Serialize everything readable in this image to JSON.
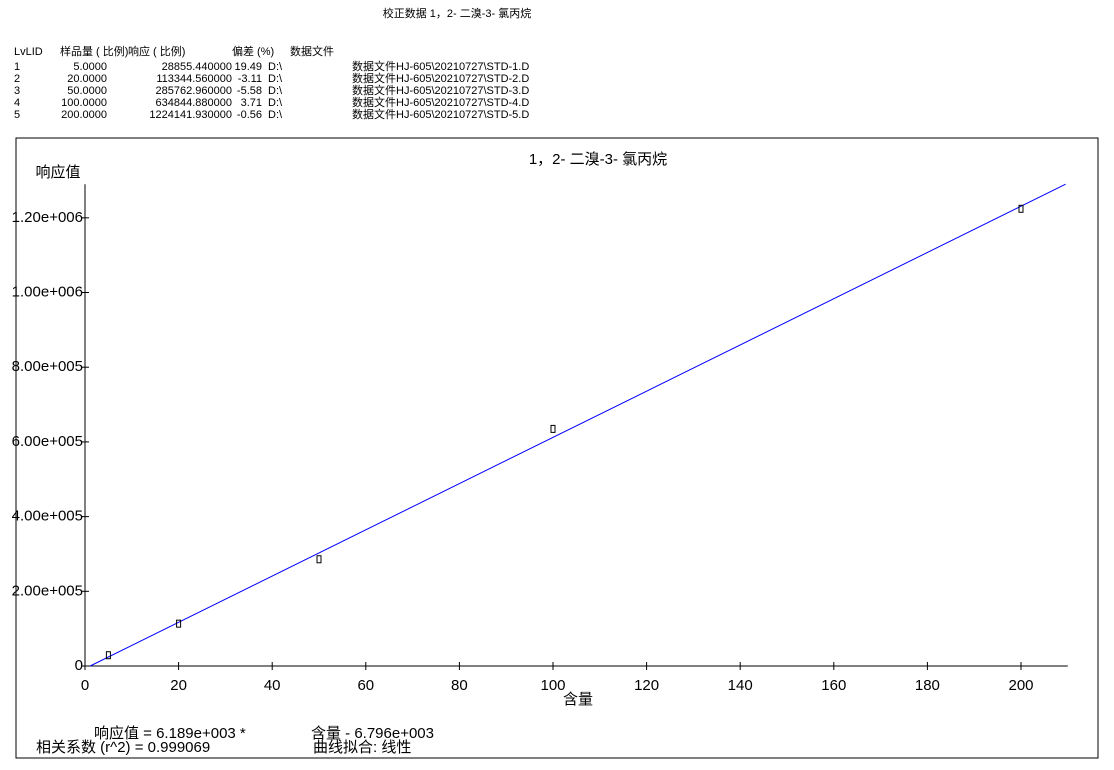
{
  "header": {
    "title": "校正数据 1，2- 二溴-3- 氯丙烷"
  },
  "table": {
    "columns": [
      "LvLID",
      "样品量 ( 比例)",
      "响应 ( 比例)",
      "偏差 (%)",
      "数据文件"
    ],
    "rows": [
      [
        "1",
        "5.0000",
        "28855.440000",
        "19.49",
        "D:\\",
        "数据文件HJ-605\\20210727\\STD-1.D"
      ],
      [
        "2",
        "20.0000",
        "113344.560000",
        "-3.11",
        "D:\\",
        "数据文件HJ-605\\20210727\\STD-2.D"
      ],
      [
        "3",
        "50.0000",
        "285762.960000",
        "-5.58",
        "D:\\",
        "数据文件HJ-605\\20210727\\STD-3.D"
      ],
      [
        "4",
        "100.0000",
        "634844.880000",
        "3.71",
        "D:\\",
        "数据文件HJ-605\\20210727\\STD-4.D"
      ],
      [
        "5",
        "200.0000",
        "1224141.930000",
        "-0.56",
        "D:\\",
        "数据文件HJ-605\\20210727\\STD-5.D"
      ]
    ]
  },
  "chart_data": {
    "type": "scatter",
    "title": "1，2- 二溴-3- 氯丙烷",
    "y_label": "响应值",
    "x_label": "含量",
    "x": [
      5,
      20,
      50,
      100,
      200
    ],
    "values": [
      28855.44,
      113344.56,
      285762.96,
      634844.88,
      1224141.93
    ],
    "color": "#000000",
    "xlim": [
      0,
      210
    ],
    "ylim": [
      0,
      1290000
    ],
    "xticks": [
      0,
      20,
      40,
      60,
      80,
      100,
      120,
      140,
      160,
      180,
      200
    ],
    "yticks": [
      0,
      {
        "value": 200000,
        "label": "2.00e+005"
      },
      {
        "value": 400000,
        "label": "4.00e+005"
      },
      {
        "value": 600000,
        "label": "6.00e+005"
      },
      {
        "value": 800000,
        "label": "8.00e+005"
      },
      {
        "value": 1000000,
        "label": "1.00e+006"
      },
      {
        "value": 1200000,
        "label": "1.20e+006"
      }
    ],
    "fit": {
      "slope": 6189,
      "intercept": -6796,
      "color": "#0000ff",
      "equation": [
        "响应值 = 6.189e+003 *",
        "含量 - 6.796e+003"
      ],
      "r2_text": "相关系数 (r^2) = 0.999069",
      "fit_text": "曲线拟合:  线性"
    }
  }
}
